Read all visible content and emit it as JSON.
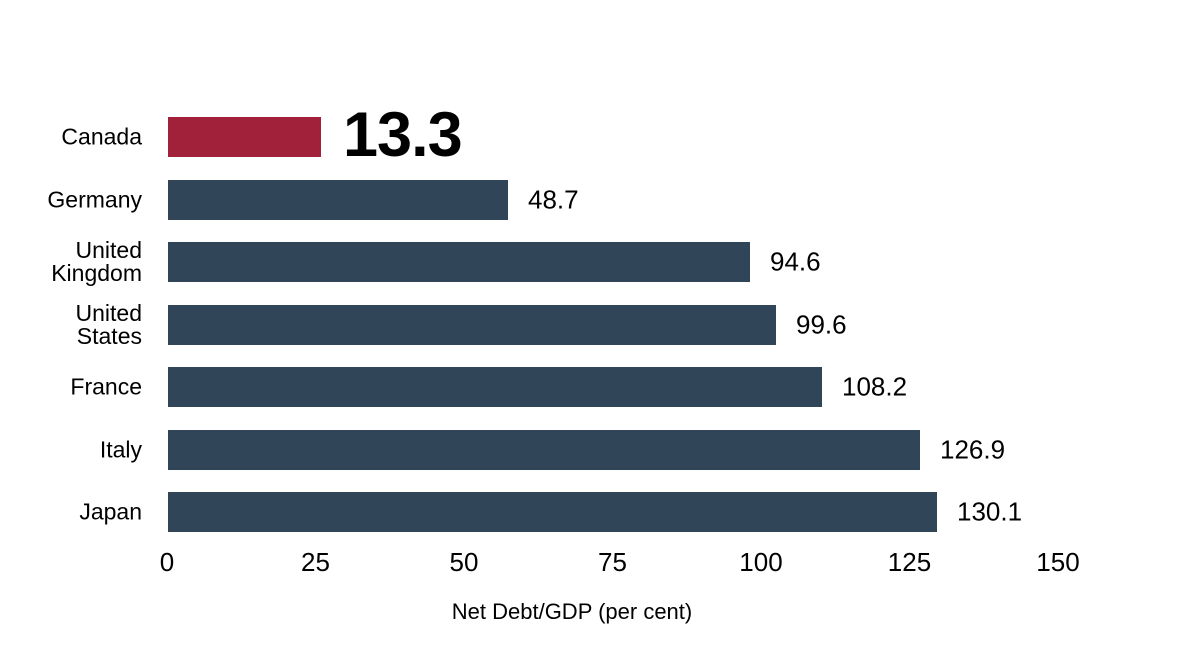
{
  "chart_data": {
    "type": "bar",
    "orientation": "horizontal",
    "title": "",
    "xlabel": "Net Debt/GDP (per cent)",
    "xlim": [
      0,
      150
    ],
    "x_ticks": [
      "0",
      "25",
      "50",
      "75",
      "100",
      "125",
      "150"
    ],
    "grid": false,
    "legend": false,
    "categories": [
      "Canada",
      "Germany",
      "United Kingdom",
      "United States",
      "France",
      "Italy",
      "Japan"
    ],
    "series": [
      {
        "name": "Net Debt/GDP (per cent)",
        "values": [
          13.3,
          48.7,
          94.6,
          99.6,
          108.2,
          126.9,
          130.1
        ]
      }
    ],
    "rows": [
      {
        "label": "Canada",
        "label_display": "Canada",
        "value": 13.3,
        "value_label": "13.3",
        "highlighted": true
      },
      {
        "label": "Germany",
        "label_display": "Germany",
        "value": 48.7,
        "value_label": "48.7",
        "highlighted": false
      },
      {
        "label": "United Kingdom",
        "label_display": "United\nKingdom",
        "value": 94.6,
        "value_label": "94.6",
        "highlighted": false
      },
      {
        "label": "United States",
        "label_display": "United\nStates",
        "value": 99.6,
        "value_label": "99.6",
        "highlighted": false
      },
      {
        "label": "France",
        "label_display": "France",
        "value": 108.2,
        "value_label": "108.2",
        "highlighted": false
      },
      {
        "label": "Italy",
        "label_display": "Italy",
        "value": 126.9,
        "value_label": "126.9",
        "highlighted": false
      },
      {
        "label": "Japan",
        "label_display": "Japan",
        "value": 130.1,
        "value_label": "130.1",
        "highlighted": false
      }
    ],
    "colors": {
      "highlight_bar": "#a02139",
      "bar": "#304557",
      "text": "#000000",
      "background": "#ffffff"
    }
  }
}
